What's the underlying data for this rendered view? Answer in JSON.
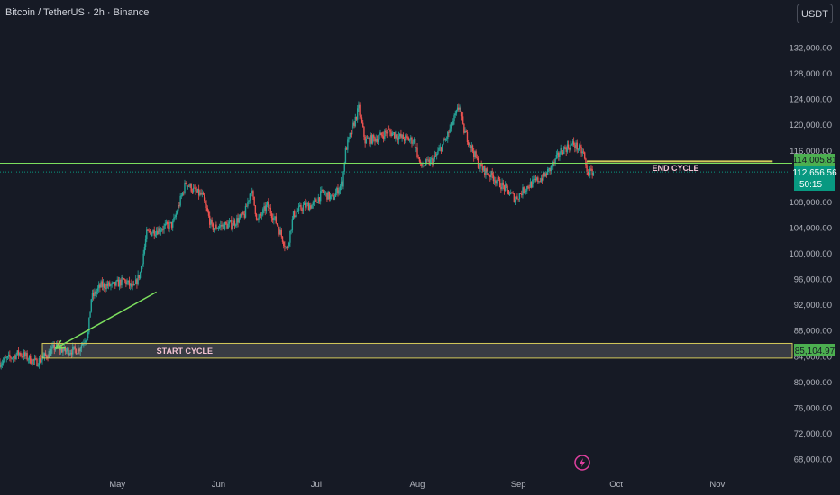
{
  "header": {
    "symbol_title": "Bitcoin / TetherUS · 2h · Binance",
    "currency_button": "USDT"
  },
  "price_axis": {
    "ticks": [
      "132,000.00",
      "128,000.00",
      "124,000.00",
      "120,000.00",
      "116,000.00",
      "108,000.00",
      "104,000.00",
      "100,000.00",
      "96,000.00",
      "92,000.00",
      "88,000.00",
      "84,000.00",
      "80,000.00",
      "76,000.00",
      "72,000.00",
      "68,000.00"
    ]
  },
  "time_axis": {
    "labels": [
      "May",
      "Jun",
      "Jul",
      "Aug",
      "Sep",
      "Oct",
      "Nov"
    ]
  },
  "price_labels": {
    "green_line": "114,005.81",
    "current_price": "112,656.56",
    "countdown": "50:15",
    "start_zone": "85,104.97"
  },
  "annotations": {
    "start_label": "START CYCLE",
    "end_label": "END CYCLE"
  },
  "colors": {
    "background": "#161a25",
    "up": "#26a69a",
    "down": "#ef5350",
    "green_line": "#7cdf5e",
    "yellow": "#d4c95a",
    "annotation_text": "#f4c4d4",
    "current_price_bg": "#089981",
    "label_green_bg": "#4caf50",
    "flash_icon": "#e040a0"
  },
  "chart_data": {
    "type": "candlestick",
    "ylim": [
      66000,
      136000
    ],
    "x_domain": [
      "2025-03-26",
      "2025-11-24"
    ],
    "path_points": [
      [
        "2025-03-26",
        83000
      ],
      [
        "2025-04-01",
        84500
      ],
      [
        "2025-04-06",
        83000
      ],
      [
        "2025-04-09",
        84000
      ],
      [
        "2025-04-12",
        85500
      ],
      [
        "2025-04-15",
        84800
      ],
      [
        "2025-04-19",
        85000
      ],
      [
        "2025-04-22",
        87500
      ],
      [
        "2025-04-23",
        93000
      ],
      [
        "2025-04-26",
        95000
      ],
      [
        "2025-04-30",
        95000
      ],
      [
        "2025-05-03",
        95800
      ],
      [
        "2025-05-06",
        94500
      ],
      [
        "2025-05-08",
        97000
      ],
      [
        "2025-05-10",
        103000
      ],
      [
        "2025-05-15",
        104000
      ],
      [
        "2025-05-18",
        104500
      ],
      [
        "2025-05-22",
        111000
      ],
      [
        "2025-05-25",
        109500
      ],
      [
        "2025-05-27",
        109000
      ],
      [
        "2025-05-30",
        104000
      ],
      [
        "2025-06-05",
        104500
      ],
      [
        "2025-06-09",
        106000
      ],
      [
        "2025-06-11",
        110000
      ],
      [
        "2025-06-13",
        105000
      ],
      [
        "2025-06-16",
        107500
      ],
      [
        "2025-06-19",
        104500
      ],
      [
        "2025-06-22",
        100500
      ],
      [
        "2025-06-24",
        106000
      ],
      [
        "2025-06-27",
        107300
      ],
      [
        "2025-06-30",
        107500
      ],
      [
        "2025-07-03",
        109500
      ],
      [
        "2025-07-06",
        108500
      ],
      [
        "2025-07-09",
        111000
      ],
      [
        "2025-07-10",
        116000
      ],
      [
        "2025-07-14",
        122500
      ],
      [
        "2025-07-16",
        117500
      ],
      [
        "2025-07-20",
        118000
      ],
      [
        "2025-07-23",
        119000
      ],
      [
        "2025-07-27",
        118000
      ],
      [
        "2025-07-31",
        117500
      ],
      [
        "2025-08-02",
        113500
      ],
      [
        "2025-08-06",
        114500
      ],
      [
        "2025-08-10",
        118000
      ],
      [
        "2025-08-14",
        123000
      ],
      [
        "2025-08-15",
        119500
      ],
      [
        "2025-08-18",
        116000
      ],
      [
        "2025-08-20",
        113500
      ],
      [
        "2025-08-24",
        112000
      ],
      [
        "2025-08-27",
        110500
      ],
      [
        "2025-08-31",
        108500
      ],
      [
        "2025-09-04",
        110500
      ],
      [
        "2025-09-09",
        112000
      ],
      [
        "2025-09-12",
        114000
      ],
      [
        "2025-09-14",
        116000
      ],
      [
        "2025-09-18",
        117000
      ],
      [
        "2025-09-21",
        115500
      ],
      [
        "2025-09-22",
        112500
      ],
      [
        "2025-09-24",
        112656.56
      ]
    ],
    "horizontal_levels": [
      {
        "price": 114005.81,
        "from": "2025-03-26",
        "to": "2025-11-24",
        "color": "green_line"
      },
      {
        "price": 112656.56,
        "from": "2025-03-26",
        "to": "2025-11-24",
        "color": "current",
        "dotted": true
      },
      {
        "price": 114300,
        "from": "2025-09-22",
        "to": "2025-11-18",
        "color": "yellow"
      }
    ],
    "zones": [
      {
        "from": "2025-04-08",
        "to": "2025-11-24",
        "top": 86000,
        "bottom": 83700,
        "label": "START CYCLE"
      }
    ],
    "arrow": {
      "from": [
        "2025-05-13",
        94000
      ],
      "to": [
        "2025-04-12",
        85200
      ]
    }
  }
}
